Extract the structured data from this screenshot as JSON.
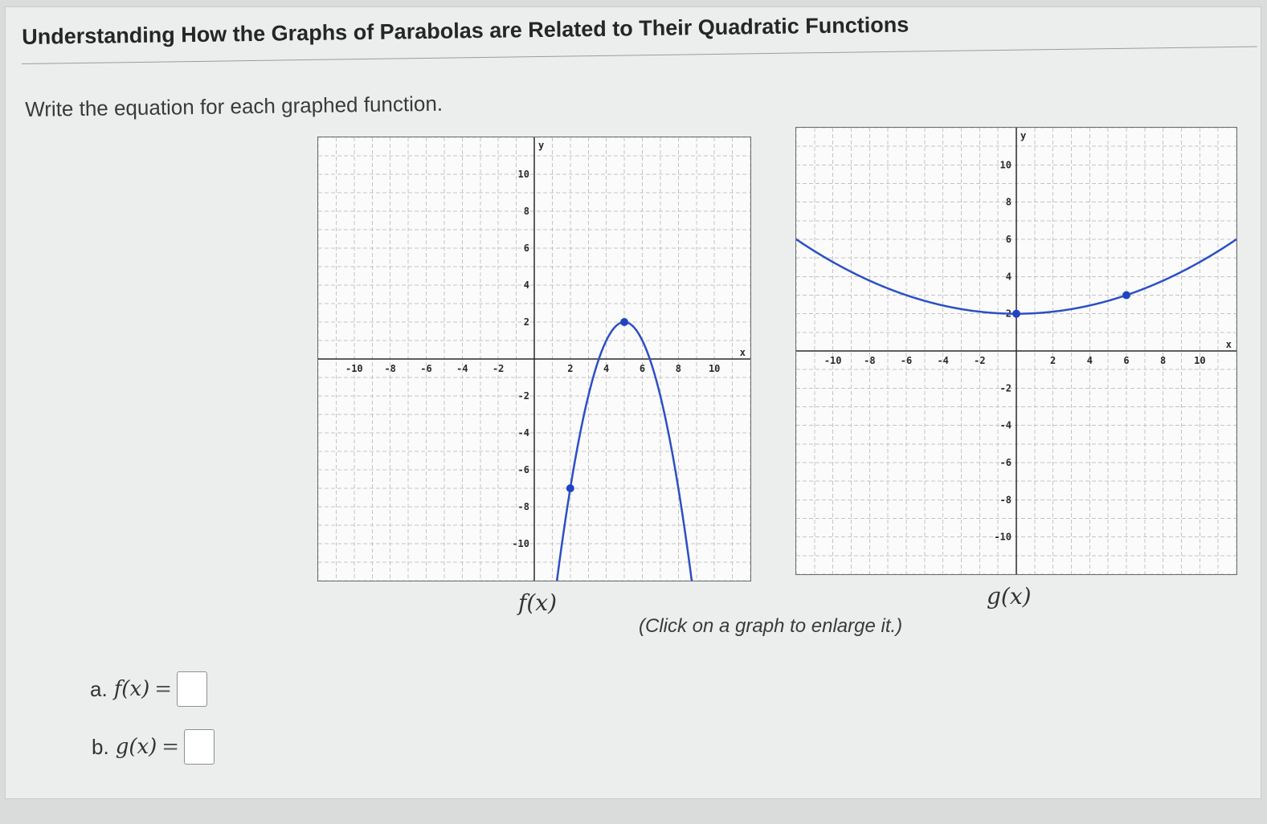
{
  "title": "Understanding How the Graphs of Parabolas are Related to Their Quadratic Functions",
  "instruction": "Write the equation for each graphed function.",
  "hint": "(Click on a graph to enlarge it.)",
  "colors": {
    "curve": "#2c4fc4",
    "grid": "#c4c4c4",
    "axis": "#2a2a2a",
    "point": "#1f44c0"
  },
  "graphs": [
    {
      "id": "f",
      "caption": "f(x)",
      "axis_labels": {
        "x": "x",
        "y": "y"
      },
      "xlim": [
        -12,
        12
      ],
      "ylim": [
        -12,
        12
      ],
      "x_ticks": [
        "-10",
        "-8",
        "-6",
        "-4",
        "-2",
        "2",
        "4",
        "6",
        "8",
        "10"
      ],
      "x_tick_values": [
        -10,
        -8,
        -6,
        -4,
        -2,
        2,
        4,
        6,
        8,
        10
      ],
      "y_ticks": [
        "10",
        "8",
        "6",
        "4",
        "2",
        "-2",
        "-4",
        "-6",
        "-8",
        "-10"
      ],
      "y_tick_values": [
        10,
        8,
        6,
        4,
        2,
        -2,
        -4,
        -6,
        -8,
        -10
      ],
      "curve": {
        "a": -1,
        "h": 5,
        "k": 2
      },
      "points": [
        {
          "x": 5,
          "y": 2
        },
        {
          "x": 2,
          "y": -7
        }
      ]
    },
    {
      "id": "g",
      "caption": "g(x)",
      "axis_labels": {
        "x": "x",
        "y": "y"
      },
      "xlim": [
        -12,
        12
      ],
      "ylim": [
        -12,
        12
      ],
      "x_ticks": [
        "-10",
        "-8",
        "-6",
        "-4",
        "-2",
        "2",
        "4",
        "6",
        "8",
        "10"
      ],
      "x_tick_values": [
        -10,
        -8,
        -6,
        -4,
        -2,
        2,
        4,
        6,
        8,
        10
      ],
      "y_ticks": [
        "10",
        "8",
        "6",
        "4",
        "2",
        "-2",
        "-4",
        "-6",
        "-8",
        "-10"
      ],
      "y_tick_values": [
        10,
        8,
        6,
        4,
        2,
        -2,
        -4,
        -6,
        -8,
        -10
      ],
      "curve": {
        "a": 0.0278,
        "h": 0,
        "k": 2
      },
      "points": [
        {
          "x": 0,
          "y": 2
        },
        {
          "x": 6,
          "y": 3
        }
      ]
    }
  ],
  "answers": [
    {
      "letter": "a.",
      "label": "f(x)",
      "eq": "=",
      "value": ""
    },
    {
      "letter": "b.",
      "label": "g(x)",
      "eq": "=",
      "value": ""
    }
  ]
}
